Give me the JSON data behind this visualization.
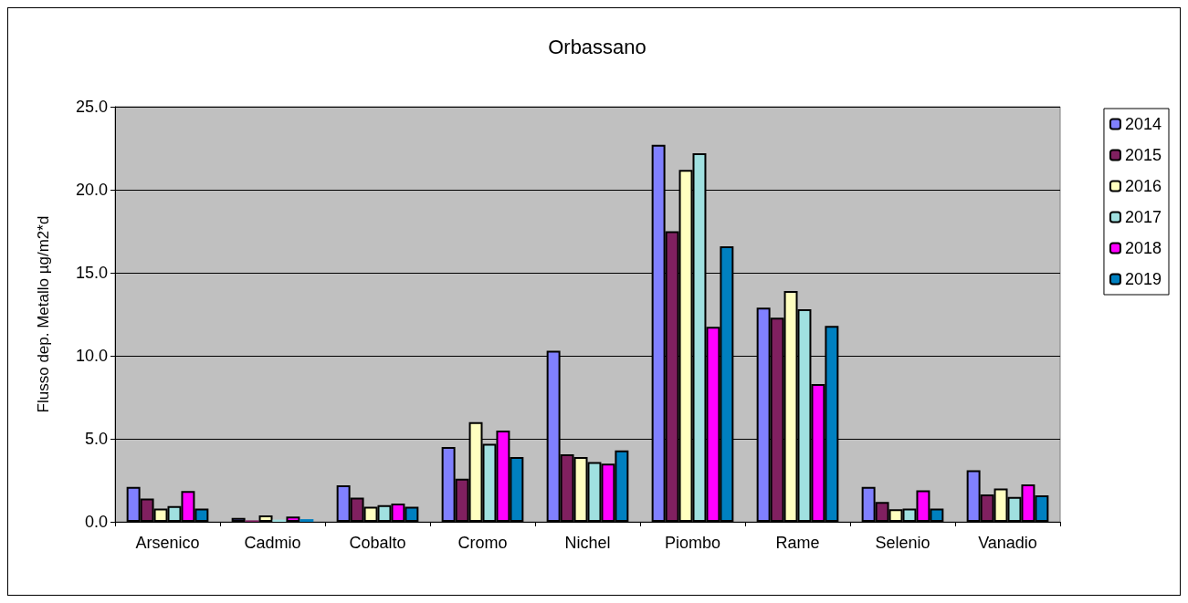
{
  "chart_data": {
    "type": "bar",
    "title": "Orbassano",
    "ylabel": "Flusso dep. Metallo µg/m2*d",
    "categories": [
      "Arsenico",
      "Cadmio",
      "Cobalto",
      "Cromo",
      "Nichel",
      "Piombo",
      "Rame",
      "Selenio",
      "Vanadio"
    ],
    "series": [
      {
        "name": "2014",
        "color": "#8080ff",
        "values": [
          2.1,
          0.24,
          2.2,
          4.5,
          10.3,
          22.7,
          12.9,
          2.1,
          3.1
        ]
      },
      {
        "name": "2015",
        "color": "#802060",
        "values": [
          1.4,
          0.09,
          1.45,
          2.6,
          4.06,
          17.5,
          12.3,
          1.2,
          1.65
        ]
      },
      {
        "name": "2016",
        "color": "#ffffc0",
        "values": [
          0.8,
          0.38,
          0.9,
          6.0,
          3.9,
          21.2,
          13.9,
          0.75,
          2.0
        ]
      },
      {
        "name": "2017",
        "color": "#a0e0e0",
        "values": [
          0.95,
          0.13,
          1.0,
          4.7,
          3.6,
          22.2,
          12.8,
          0.8,
          1.5
        ]
      },
      {
        "name": "2018",
        "color": "#ff00ff",
        "values": [
          1.85,
          0.31,
          1.1,
          5.5,
          3.5,
          11.75,
          8.3,
          1.9,
          2.25
        ]
      },
      {
        "name": "2019",
        "color": "#0080c0",
        "values": [
          0.8,
          0.16,
          0.9,
          3.9,
          4.3,
          16.6,
          11.8,
          0.8,
          1.6
        ]
      }
    ],
    "ylim": [
      0,
      25
    ],
    "yticks": [
      {
        "value": 0,
        "label": "0.0"
      },
      {
        "value": 5,
        "label": "5.0"
      },
      {
        "value": 10,
        "label": "10.0"
      },
      {
        "value": 15,
        "label": "15.0"
      },
      {
        "value": 20,
        "label": "20.0"
      },
      {
        "value": 25,
        "label": "25.0"
      }
    ],
    "grid": "y",
    "legend": "right"
  }
}
